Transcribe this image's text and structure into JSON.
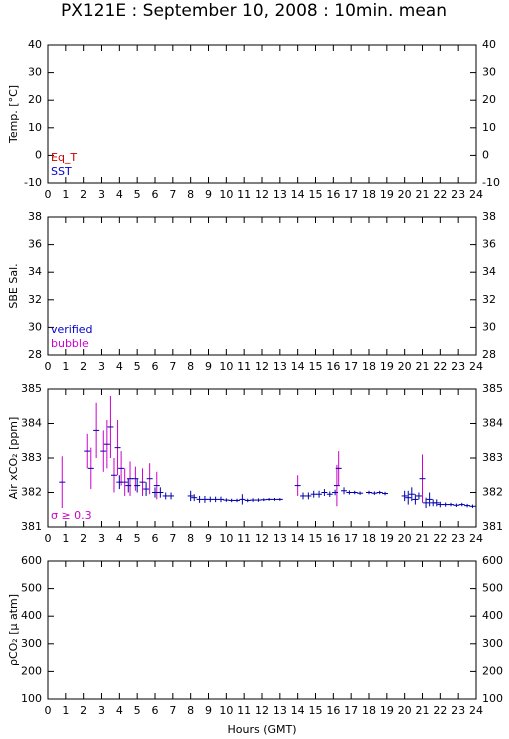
{
  "title": "PX121E : September 10, 2008 : 10min. mean",
  "x_label": "Hours (GMT)",
  "chart_data": [
    {
      "type": "scatter",
      "y_label": "Temp. [°C]",
      "xlim": [
        0,
        24
      ],
      "xticks": [
        0,
        1,
        2,
        3,
        4,
        5,
        6,
        7,
        8,
        9,
        10,
        11,
        12,
        13,
        14,
        15,
        16,
        17,
        18,
        19,
        20,
        21,
        22,
        23,
        24
      ],
      "ylim": [
        -10,
        40
      ],
      "yticks": [
        -10,
        0,
        10,
        20,
        30,
        40
      ],
      "annotations": [
        {
          "text": "Eq_T",
          "color": "#cc0000"
        },
        {
          "text": "SST",
          "color": "#0000cc"
        }
      ],
      "series": []
    },
    {
      "type": "scatter",
      "y_label": "SBE Sal.",
      "xlim": [
        0,
        24
      ],
      "xticks": [
        0,
        1,
        2,
        3,
        4,
        5,
        6,
        7,
        8,
        9,
        10,
        11,
        12,
        13,
        14,
        15,
        16,
        17,
        18,
        19,
        20,
        21,
        22,
        23,
        24
      ],
      "ylim": [
        28,
        38
      ],
      "yticks": [
        28,
        30,
        32,
        34,
        36,
        38
      ],
      "annotations": [
        {
          "text": "verified",
          "color": "#0000cc"
        },
        {
          "text": "bubble",
          "color": "#cc00cc"
        }
      ],
      "series": []
    },
    {
      "type": "scatter",
      "y_label": "Air xCO₂ [ppm]",
      "xlim": [
        0,
        24
      ],
      "xticks": [
        0,
        1,
        2,
        3,
        4,
        5,
        6,
        7,
        8,
        9,
        10,
        11,
        12,
        13,
        14,
        15,
        16,
        17,
        18,
        19,
        20,
        21,
        22,
        23,
        24
      ],
      "ylim": [
        381,
        385
      ],
      "yticks": [
        381,
        382,
        383,
        384,
        385
      ],
      "annotations": [
        {
          "text": "σ ≥ 0.3",
          "color": "#cc00cc"
        }
      ],
      "series": [
        {
          "color": "#cc00cc",
          "x": [
            0.8,
            2.2,
            2.4,
            2.7,
            3.1,
            3.3,
            3.5,
            3.7,
            3.9,
            4.1,
            4.3,
            4.6,
            4.9,
            5.3,
            5.7,
            6.1,
            14.0,
            16.2,
            16.3,
            21.0
          ],
          "values": [
            382.3,
            383.2,
            382.7,
            383.8,
            383.2,
            383.4,
            383.9,
            382.5,
            383.3,
            382.7,
            382.3,
            382.4,
            382.4,
            382.3,
            382.4,
            382.2,
            382.2,
            382.2,
            382.7,
            382.4
          ],
          "errors": [
            0.75,
            0.5,
            0.6,
            0.8,
            0.6,
            0.7,
            0.9,
            0.5,
            0.8,
            0.5,
            0.4,
            0.5,
            0.35,
            0.4,
            0.45,
            0.4,
            0.3,
            0.6,
            0.5,
            0.7
          ]
        },
        {
          "color": "#0000aa",
          "x": [
            4.0,
            4.5,
            5.0,
            5.5,
            6.0,
            6.3,
            6.6,
            6.9,
            8.0,
            8.2,
            8.5,
            8.8,
            9.1,
            9.4,
            9.7,
            10.0,
            10.3,
            10.6,
            10.9,
            11.2,
            11.5,
            11.8,
            12.1,
            12.4,
            12.7,
            13.0,
            14.3,
            14.6,
            14.9,
            15.2,
            15.5,
            15.8,
            16.1,
            16.6,
            16.9,
            17.2,
            17.5,
            18.0,
            18.3,
            18.6,
            18.9,
            20.0,
            20.2,
            20.4,
            20.6,
            20.8,
            21.2,
            21.4,
            21.6,
            21.8,
            22.0,
            22.3,
            22.6,
            22.9,
            23.2,
            23.5,
            23.8
          ],
          "values": [
            382.3,
            382.2,
            382.2,
            382.1,
            382.0,
            382.0,
            381.9,
            381.9,
            381.9,
            381.85,
            381.8,
            381.8,
            381.8,
            381.8,
            381.8,
            381.78,
            381.77,
            381.77,
            381.8,
            381.77,
            381.78,
            381.78,
            381.79,
            381.8,
            381.8,
            381.8,
            381.9,
            381.9,
            381.95,
            381.95,
            382.0,
            381.95,
            382.0,
            382.05,
            382.0,
            382.0,
            381.98,
            382.0,
            381.98,
            382.0,
            381.97,
            381.9,
            381.85,
            381.95,
            381.8,
            381.9,
            381.7,
            381.8,
            381.7,
            381.7,
            381.65,
            381.65,
            381.65,
            381.63,
            381.65,
            381.62,
            381.6
          ],
          "errors": [
            0.2,
            0.2,
            0.2,
            0.2,
            0.15,
            0.15,
            0.1,
            0.1,
            0.15,
            0.1,
            0.1,
            0.1,
            0.08,
            0.08,
            0.08,
            0.05,
            0.05,
            0.05,
            0.15,
            0.05,
            0.05,
            0.05,
            0.04,
            0.04,
            0.04,
            0.04,
            0.1,
            0.1,
            0.1,
            0.1,
            0.1,
            0.08,
            0.08,
            0.1,
            0.06,
            0.05,
            0.05,
            0.05,
            0.05,
            0.05,
            0.05,
            0.15,
            0.2,
            0.2,
            0.15,
            0.1,
            0.15,
            0.2,
            0.1,
            0.1,
            0.08,
            0.06,
            0.05,
            0.05,
            0.05,
            0.05,
            0.05
          ]
        }
      ]
    },
    {
      "type": "scatter",
      "y_label": "ρCO₂ [μ atm]",
      "xlim": [
        0,
        24
      ],
      "xticks": [
        0,
        1,
        2,
        3,
        4,
        5,
        6,
        7,
        8,
        9,
        10,
        11,
        12,
        13,
        14,
        15,
        16,
        17,
        18,
        19,
        20,
        21,
        22,
        23,
        24
      ],
      "ylim": [
        100,
        600
      ],
      "yticks": [
        100,
        200,
        300,
        400,
        500,
        600
      ],
      "annotations": [],
      "series": []
    }
  ]
}
